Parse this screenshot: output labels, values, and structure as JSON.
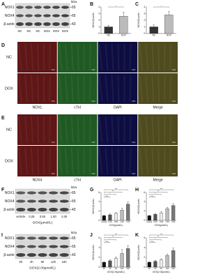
{
  "blots": [
    {
      "label": "A",
      "rows": [
        "NOX1",
        "NOX4",
        "β-actin"
      ],
      "unit": "kDa",
      "weights": [
        65,
        65,
        43
      ],
      "lanes": [
        "NC",
        "NC",
        "NC",
        "DOX",
        "DOX",
        "DOX"
      ]
    },
    {
      "label": "F",
      "rows": [
        "NOX1",
        "NOX4",
        "β-actin"
      ],
      "unit": "kDa",
      "weights": [
        65,
        65,
        43
      ],
      "lanes": [
        "vehicle",
        "0.25",
        "0.50",
        "1.00",
        "2.00"
      ],
      "group": "DOX(μmol/L)"
    },
    {
      "label": "I",
      "rows": [
        "NOX1",
        "NOX4",
        "β-actin"
      ],
      "unit": "kDa",
      "weights": [
        65,
        65,
        43
      ],
      "lanes": [
        "0h",
        "2h",
        "6h",
        "12h",
        "24h"
      ],
      "group": "DOX(2.00μmol/L)"
    }
  ],
  "micrographs": [
    {
      "label": "D",
      "rows": [
        "NC",
        "DOX"
      ],
      "columns": [
        "NOX1",
        "cTnI",
        "DAPI",
        "Merge"
      ],
      "colors": [
        "#5e1616",
        "#1f5a22",
        "#0d0d42",
        "#4f4b1e"
      ]
    },
    {
      "label": "E",
      "rows": [
        "NC",
        "DOX"
      ],
      "columns": [
        "NOX4",
        "cTnI",
        "DAPI",
        "Merge"
      ],
      "colors": [
        "#5e1616",
        "#1f5a22",
        "#0d0d42",
        "#4f4b1e"
      ]
    }
  ],
  "chart_data": [
    {
      "type": "bar",
      "label": "B",
      "ylabel": "NOX1/β-actin",
      "categories": [
        "NC",
        "DOX"
      ],
      "values": [
        1,
        2.6
      ],
      "errors": [
        0.2,
        0.6
      ],
      "colors": [
        "#333333",
        "#bbbbbb"
      ],
      "ylim": [
        0,
        4
      ],
      "yticks": [
        0,
        1,
        2,
        3,
        4
      ],
      "brackets": [
        {
          "from": 0,
          "to": 1,
          "label": "*"
        }
      ]
    },
    {
      "type": "bar",
      "label": "C",
      "ylabel": "NOX4/β-actin",
      "categories": [
        "NC",
        "DOX"
      ],
      "values": [
        1,
        2.8
      ],
      "errors": [
        0.3,
        0.5
      ],
      "colors": [
        "#333333",
        "#bbbbbb"
      ],
      "ylim": [
        0,
        4
      ],
      "yticks": [
        0,
        1,
        2,
        3,
        4
      ],
      "brackets": [
        {
          "from": 0,
          "to": 1,
          "label": "*"
        }
      ]
    },
    {
      "type": "bar",
      "label": "G",
      "ylabel": "NOX1/β-actin",
      "xlabel": "DOX(μmol/L)",
      "categories": [
        "vehicle",
        "0.25",
        "0.50",
        "1.00",
        "2.00"
      ],
      "values": [
        1,
        1.2,
        1.5,
        2.2,
        3.5
      ],
      "errors": [
        0.1,
        0.2,
        0.2,
        0.4,
        0.5
      ],
      "colors": [
        "#111111",
        "#555555",
        "#eeeeee",
        "#bbbbbb",
        "#777777"
      ],
      "ylim": [
        0,
        6
      ],
      "yticks": [
        0,
        2,
        4,
        6
      ],
      "brackets": [
        {
          "from": 0,
          "to": 1,
          "label": "n.s."
        },
        {
          "from": 0,
          "to": 2,
          "label": "*"
        },
        {
          "from": 0,
          "to": 3,
          "label": "**"
        },
        {
          "from": 0,
          "to": 4,
          "label": "***"
        }
      ]
    },
    {
      "type": "bar",
      "label": "H",
      "ylabel": "NOX4/β-actin",
      "xlabel": "DOX(μmol/L)",
      "categories": [
        "vehicle",
        "0.25",
        "0.50",
        "1.00",
        "2.00"
      ],
      "values": [
        1,
        1.3,
        1.6,
        2.5,
        3.2
      ],
      "errors": [
        0.1,
        0.2,
        0.3,
        0.3,
        0.4
      ],
      "colors": [
        "#111111",
        "#555555",
        "#eeeeee",
        "#bbbbbb",
        "#777777"
      ],
      "ylim": [
        0,
        6
      ],
      "yticks": [
        0,
        2,
        4,
        6
      ],
      "brackets": [
        {
          "from": 0,
          "to": 1,
          "label": "n.s."
        },
        {
          "from": 0,
          "to": 2,
          "label": "*"
        },
        {
          "from": 0,
          "to": 3,
          "label": "**"
        },
        {
          "from": 0,
          "to": 4,
          "label": "***"
        }
      ]
    },
    {
      "type": "bar",
      "label": "J",
      "ylabel": "NOX1/β-actin",
      "xlabel": "DOX(2.00μmol/L)",
      "categories": [
        "0h",
        "2h",
        "6h",
        "12h",
        "24h"
      ],
      "values": [
        1,
        1.3,
        1.8,
        2.8,
        3.8
      ],
      "errors": [
        0.1,
        0.2,
        0.3,
        0.8,
        0.6
      ],
      "colors": [
        "#111111",
        "#555555",
        "#eeeeee",
        "#bbbbbb",
        "#777777"
      ],
      "ylim": [
        0,
        6
      ],
      "yticks": [
        0,
        2,
        4,
        6
      ],
      "brackets": [
        {
          "from": 0,
          "to": 1,
          "label": "n.s."
        },
        {
          "from": 0,
          "to": 2,
          "label": "*"
        },
        {
          "from": 0,
          "to": 3,
          "label": "**"
        },
        {
          "from": 0,
          "to": 4,
          "label": "***"
        }
      ]
    },
    {
      "type": "bar",
      "label": "K",
      "ylabel": "NOX4/β-actin",
      "xlabel": "DOX(2.00μmol/L)",
      "categories": [
        "0h",
        "2h",
        "6h",
        "12h",
        "24h"
      ],
      "values": [
        1,
        1.2,
        1.5,
        2.4,
        3.4
      ],
      "errors": [
        0.1,
        0.2,
        0.2,
        0.3,
        0.5
      ],
      "colors": [
        "#111111",
        "#555555",
        "#eeeeee",
        "#bbbbbb",
        "#777777"
      ],
      "ylim": [
        0,
        6
      ],
      "yticks": [
        0,
        2,
        4,
        6
      ],
      "brackets": [
        {
          "from": 0,
          "to": 1,
          "label": "n.s."
        },
        {
          "from": 0,
          "to": 2,
          "label": "*"
        },
        {
          "from": 0,
          "to": 3,
          "label": "**"
        },
        {
          "from": 0,
          "to": 4,
          "label": "***"
        }
      ]
    }
  ]
}
